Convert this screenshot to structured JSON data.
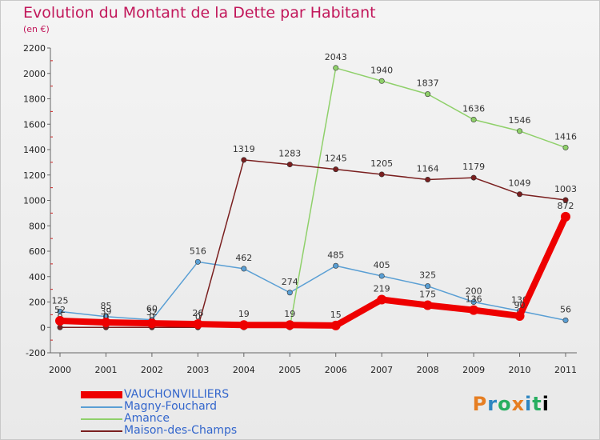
{
  "header": {
    "title": "Evolution du Montant de la Dette par Habitant",
    "unit": "(en €)"
  },
  "brand": {
    "logo_text": "Proxiti"
  },
  "chart_data": {
    "type": "line",
    "title": "Evolution du Montant de la Dette par Habitant",
    "subtitle": "(en €)",
    "xlabel": "",
    "ylabel": "",
    "x": [
      "2000",
      "2001",
      "2002",
      "2003",
      "2004",
      "2005",
      "2006",
      "2007",
      "2008",
      "2009",
      "2010",
      "2011"
    ],
    "ylim": [
      -200,
      2200
    ],
    "yticks": [
      -200,
      0,
      200,
      400,
      600,
      800,
      1000,
      1200,
      1400,
      1600,
      1800,
      2000,
      2200
    ],
    "grid": false,
    "legend": "bottom-left",
    "series": [
      {
        "name": "Magny-Fouchard",
        "color": "#5a9fd4",
        "values": [
          125,
          85,
          60,
          516,
          462,
          274,
          485,
          405,
          325,
          200,
          130,
          56
        ],
        "labels": [
          "125",
          "85",
          "60",
          "516",
          "462",
          "274",
          "485",
          "405",
          "325",
          "200",
          "130",
          "56"
        ]
      },
      {
        "name": "Amance",
        "color": "#8fd06a",
        "values": [
          null,
          null,
          null,
          null,
          0,
          0,
          2043,
          1940,
          1837,
          1636,
          1546,
          1416
        ],
        "labels": [
          "",
          "",
          "",
          "",
          "",
          "",
          "2043",
          "1940",
          "1837",
          "1636",
          "1546",
          "1416"
        ]
      },
      {
        "name": "Maison-des-Champs",
        "color": "#7a1f1f",
        "values": [
          0,
          0,
          0,
          0,
          1319,
          1283,
          1245,
          1205,
          1164,
          1179,
          1049,
          1003
        ],
        "labels": [
          "0",
          "0",
          "0",
          "0",
          "1319",
          "1283",
          "1245",
          "1205",
          "1164",
          "1179",
          "1049",
          "1003"
        ]
      },
      {
        "name": "VAUCHONVILLIERS",
        "color": "#ee0000",
        "values": [
          52,
          39,
          32,
          26,
          19,
          19,
          15,
          219,
          175,
          136,
          90,
          872
        ],
        "labels": [
          "52",
          "39",
          "32",
          "26",
          "19",
          "19",
          "15",
          "219",
          "175",
          "136",
          "90",
          "872"
        ]
      }
    ]
  },
  "legend_items": [
    {
      "label": "VAUCHONVILLIERS",
      "color": "#ee0000",
      "thick": true,
      "text_color": "#3366cc"
    },
    {
      "label": "Magny-Fouchard",
      "color": "#5a9fd4",
      "thick": false,
      "text_color": "#3366cc"
    },
    {
      "label": "Amance",
      "color": "#8fd06a",
      "thick": false,
      "text_color": "#3366cc"
    },
    {
      "label": "Maison-des-Champs",
      "color": "#7a1f1f",
      "thick": false,
      "text_color": "#3366cc"
    }
  ]
}
